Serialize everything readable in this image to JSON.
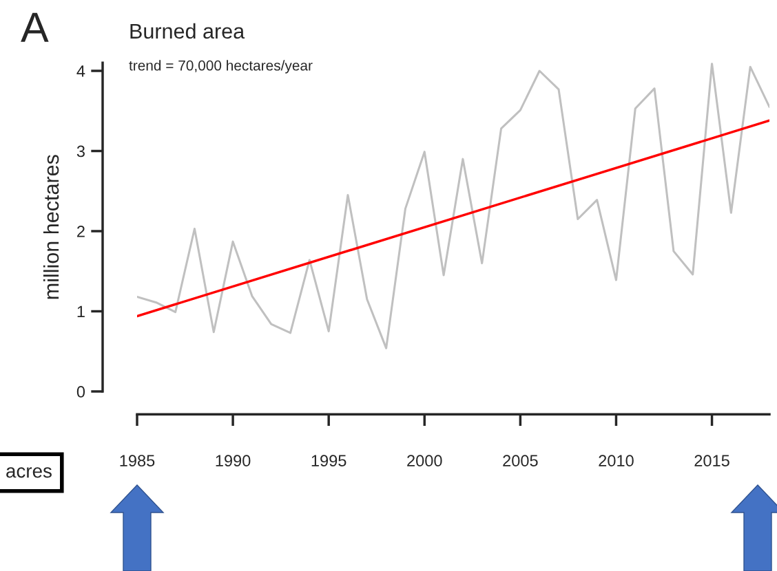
{
  "chart_data": {
    "type": "line",
    "title": "Burned area",
    "subtitle": "trend = 70,000 hectares/year",
    "ylabel": "million hectares",
    "annotations": [
      "A",
      "acres"
    ],
    "x": [
      1985,
      1986,
      1987,
      1988,
      1989,
      1990,
      1991,
      1992,
      1993,
      1994,
      1995,
      1996,
      1997,
      1998,
      1999,
      2000,
      2001,
      2002,
      2003,
      2004,
      2005,
      2006,
      2007,
      2008,
      2009,
      2010,
      2011,
      2012,
      2013,
      2014,
      2015,
      2016,
      2017,
      2018
    ],
    "series": [
      {
        "color": "#c0c0c0",
        "values": [
          1.18,
          1.11,
          0.99,
          2.03,
          0.74,
          1.87,
          1.19,
          0.84,
          0.73,
          1.64,
          0.75,
          2.45,
          1.15,
          0.54,
          2.28,
          2.99,
          1.45,
          2.9,
          1.6,
          3.28,
          3.51,
          4.0,
          3.77,
          2.15,
          2.39,
          1.39,
          3.53,
          3.78,
          1.75,
          1.46,
          4.09,
          2.23,
          4.05,
          3.55
        ]
      },
      {
        "type": "line",
        "color": "#ff0000",
        "x": [
          1985,
          2018
        ],
        "values": [
          0.94,
          3.38
        ]
      }
    ],
    "xlim": [
      1985,
      2018
    ],
    "ylim": [
      0,
      4.1
    ],
    "xticks": [
      1985,
      1990,
      1995,
      2000,
      2005,
      2010,
      2015
    ],
    "yticks": [
      0,
      1,
      2,
      3,
      4
    ],
    "grid": false,
    "legend": false,
    "marker": "none",
    "line_style": "solid"
  }
}
